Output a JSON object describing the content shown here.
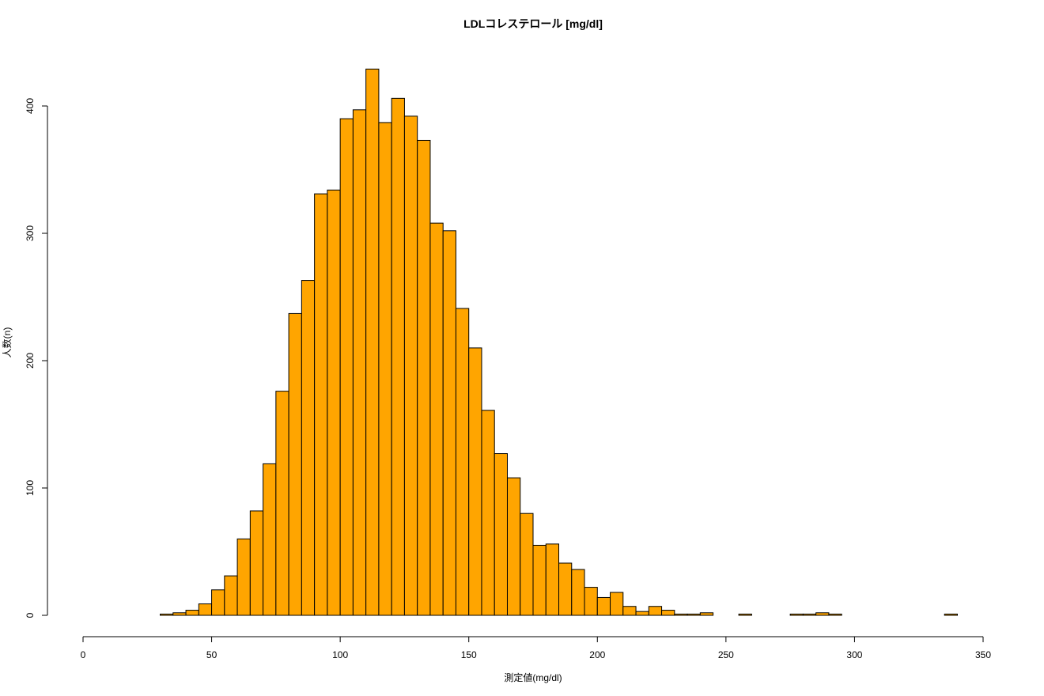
{
  "chart_data": {
    "type": "bar",
    "title": "LDLコレステロール [mg/dl]",
    "xlabel": "測定値(mg/dl)",
    "ylabel": "人数(n)",
    "xlim": [
      0,
      350
    ],
    "ylim": [
      0,
      430
    ],
    "xticks": [
      0,
      50,
      100,
      150,
      200,
      250,
      300,
      350
    ],
    "yticks": [
      0,
      100,
      200,
      300,
      400
    ],
    "bin_width": 5,
    "bins_start": [
      30,
      35,
      40,
      45,
      50,
      55,
      60,
      65,
      70,
      75,
      80,
      85,
      90,
      95,
      100,
      105,
      110,
      115,
      120,
      125,
      130,
      135,
      140,
      145,
      150,
      155,
      160,
      165,
      170,
      175,
      180,
      185,
      190,
      195,
      200,
      205,
      210,
      215,
      220,
      225,
      230,
      235,
      240,
      245,
      250,
      255,
      260,
      265,
      270,
      275,
      280,
      285,
      290,
      295,
      300,
      305,
      310,
      315,
      320,
      325,
      330,
      335
    ],
    "values": [
      1,
      2,
      4,
      9,
      20,
      31,
      60,
      82,
      119,
      176,
      237,
      263,
      331,
      334,
      390,
      397,
      429,
      387,
      406,
      392,
      373,
      308,
      302,
      241,
      210,
      161,
      127,
      108,
      80,
      55,
      56,
      41,
      36,
      22,
      14,
      18,
      7,
      3,
      7,
      4,
      1,
      1,
      2,
      0,
      0,
      1,
      0,
      0,
      0,
      1,
      1,
      2,
      1,
      0,
      0,
      0,
      0,
      0,
      0,
      0,
      0,
      1
    ],
    "bar_color": "#FFA500",
    "grid": false,
    "legend": "none"
  }
}
